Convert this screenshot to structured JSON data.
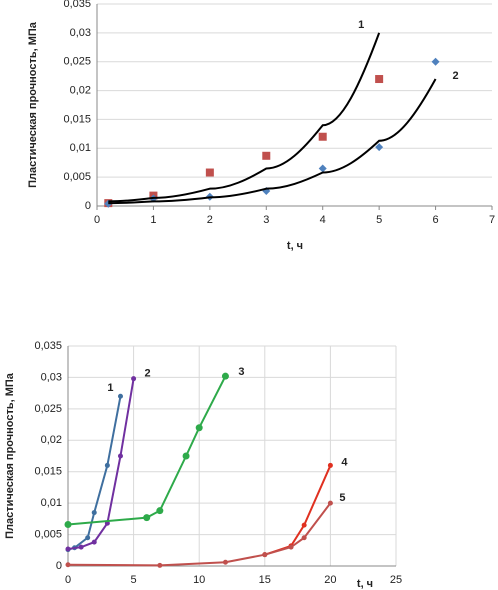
{
  "chart_data": [
    {
      "type": "scatter",
      "x_label": "t, ч",
      "y_label": "Пластическая прочность, МПа",
      "xlim": [
        0,
        7
      ],
      "ylim": [
        0,
        0.035
      ],
      "xticks": [
        0,
        1,
        2,
        3,
        4,
        5,
        6,
        7
      ],
      "yticks": [
        0,
        {
          "value": 0.005,
          "label": "0,005"
        },
        {
          "value": 0.01,
          "label": "0,01"
        },
        {
          "value": 0.015,
          "label": "0,015"
        },
        {
          "value": 0.02,
          "label": "0,02"
        },
        {
          "value": 0.025,
          "label": "0,025"
        },
        {
          "value": 0.03,
          "label": "0,03"
        },
        {
          "value": 0.035,
          "label": "0,035"
        }
      ],
      "grid": "y",
      "series": [
        {
          "color": "#c0504d",
          "marker": "square",
          "x": [
            0.2,
            1,
            2,
            3,
            4,
            5
          ],
          "values": [
            0.0005,
            0.0018,
            0.0058,
            0.0087,
            0.012,
            0.022
          ]
        },
        {
          "color": "#4f81bd",
          "marker": "diamond",
          "x": [
            0.2,
            1,
            2,
            3,
            4,
            5,
            6
          ],
          "values": [
            0.0004,
            0.0013,
            0.0016,
            0.0026,
            0.0065,
            0.0102,
            0.025
          ]
        },
        {
          "name": "1",
          "type": "line",
          "color": "#000000",
          "x": [
            0.2,
            1,
            2,
            3,
            4,
            5
          ],
          "values": [
            0.0008,
            0.0014,
            0.003,
            0.0065,
            0.014,
            0.03
          ]
        },
        {
          "name": "2",
          "type": "line",
          "color": "#000000",
          "x": [
            0.2,
            1,
            2,
            3,
            4,
            5,
            6
          ],
          "values": [
            0.0005,
            0.0008,
            0.0015,
            0.003,
            0.0058,
            0.0113,
            0.022
          ]
        }
      ]
    },
    {
      "type": "line",
      "x_label": "t, ч",
      "y_label": "Пластическая прочность, МПа",
      "xlim": [
        0,
        25
      ],
      "ylim": [
        0,
        0.035
      ],
      "xticks": [
        0,
        5,
        10,
        15,
        20,
        25
      ],
      "yticks": [
        0,
        {
          "value": 0.005,
          "label": "0,005"
        },
        {
          "value": 0.01,
          "label": "0,01"
        },
        {
          "value": 0.015,
          "label": "0,015"
        },
        {
          "value": 0.02,
          "label": "0,02"
        },
        {
          "value": 0.025,
          "label": "0,025"
        },
        {
          "value": 0.03,
          "label": "0,03"
        },
        {
          "value": 0.035,
          "label": "0,035"
        }
      ],
      "grid": "xy",
      "series": [
        {
          "name": "1",
          "color": "#3f6f9f",
          "x": [
            0,
            0.5,
            1.5,
            2,
            3,
            4
          ],
          "values": [
            0.0026,
            0.0029,
            0.0045,
            0.0085,
            0.016,
            0.027
          ]
        },
        {
          "name": "2",
          "color": "#7030a0",
          "x": [
            0,
            1,
            2,
            3,
            4,
            5
          ],
          "values": [
            0.0027,
            0.003,
            0.0038,
            0.0068,
            0.0175,
            0.0298
          ]
        },
        {
          "name": "3",
          "color": "#2eaa4a",
          "x": [
            0,
            6,
            7,
            9,
            10,
            12
          ],
          "values": [
            0.0066,
            0.0077,
            0.0088,
            0.0175,
            0.022,
            0.0302
          ]
        },
        {
          "name": "4",
          "color": "#e03020",
          "x": [
            15,
            17,
            18,
            20
          ],
          "values": [
            0.0018,
            0.0032,
            0.0065,
            0.016
          ]
        },
        {
          "name": "5",
          "color": "#c0504d",
          "x": [
            0,
            7,
            12,
            15,
            17,
            18,
            20
          ],
          "values": [
            0.0002,
            0.0001,
            0.0006,
            0.0018,
            0.003,
            0.0045,
            0.01
          ]
        }
      ]
    }
  ]
}
